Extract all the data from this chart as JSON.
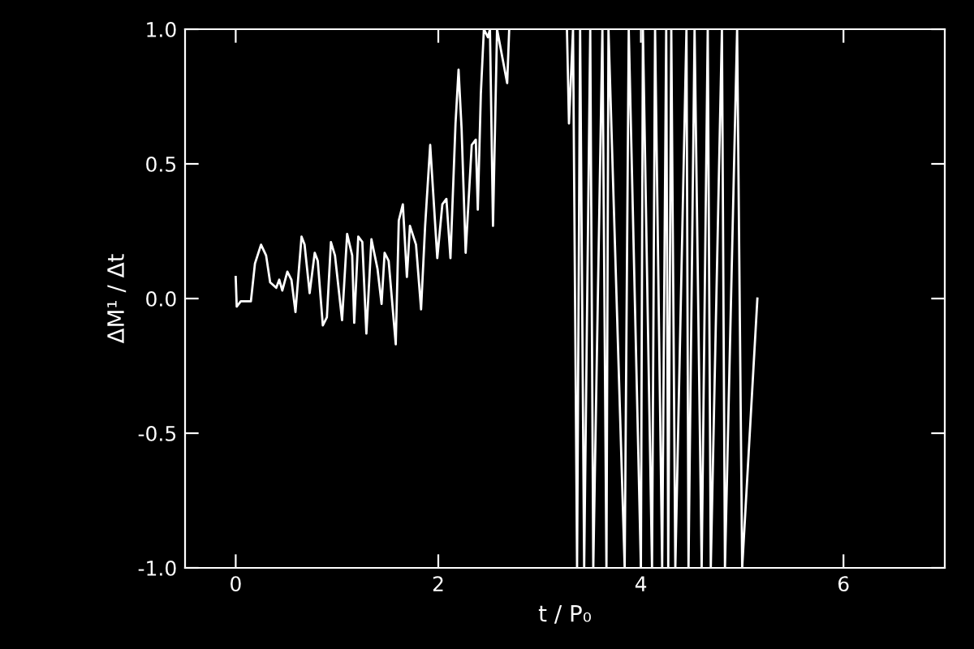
{
  "chart_data": {
    "type": "line",
    "xlabel": "t / P₀",
    "ylabel": "ΔM¹ / Δt",
    "xlim": [
      -0.5,
      7
    ],
    "ylim": [
      -1,
      1
    ],
    "xticks": [
      0,
      2,
      4,
      6
    ],
    "yticks": [
      {
        "value": -1,
        "label": "-1.0"
      },
      {
        "value": -0.5,
        "label": "-0.5"
      },
      {
        "value": 0,
        "label": "0.0"
      },
      {
        "value": 0.5,
        "label": "0.5"
      },
      {
        "value": 1,
        "label": "1.0"
      }
    ],
    "grid": false,
    "legend": false,
    "marker": "none",
    "line_style": "solid",
    "series": [
      {
        "color": "#ffffff",
        "x": [
          0,
          0.01,
          0.05,
          0.15,
          0.19,
          0.25,
          0.3,
          0.34,
          0.4,
          0.43,
          0.46,
          0.51,
          0.55,
          0.59,
          0.65,
          0.68,
          0.73,
          0.78,
          0.81,
          0.86,
          0.9,
          0.94,
          0.98,
          1.05,
          1.1,
          1.15,
          1.17,
          1.21,
          1.25,
          1.29,
          1.34,
          1.4,
          1.44,
          1.47,
          1.51,
          1.58,
          1.61,
          1.65,
          1.69,
          1.72,
          1.78,
          1.83,
          1.87,
          1.92,
          1.99,
          2.04,
          2.08,
          2.12,
          2.17,
          2.2,
          2.23,
          2.27,
          2.33,
          2.37,
          2.39,
          2.42,
          2.45,
          2.49,
          2.51,
          2.54,
          2.58,
          2.68,
          2.7,
          2.75,
          3.27,
          3.29,
          3.33,
          3.37,
          3.4,
          3.44,
          3.5,
          3.53,
          3.62,
          3.66,
          3.68,
          3.84,
          3.88,
          4.0,
          4.02,
          4.11,
          4.14,
          4.21,
          4.25,
          4.27,
          4.3,
          4.34,
          4.45,
          4.47,
          4.53,
          4.6,
          4.66,
          4.69,
          4.8,
          4.83,
          4.95,
          5.0,
          5.15
        ],
        "values": [
          0.08,
          -0.03,
          -0.01,
          -0.01,
          0.13,
          0.2,
          0.16,
          0.06,
          0.04,
          0.07,
          0.03,
          0.1,
          0.07,
          -0.05,
          0.23,
          0.2,
          0.02,
          0.17,
          0.14,
          -0.1,
          -0.07,
          0.21,
          0.16,
          -0.08,
          0.24,
          0.16,
          -0.09,
          0.23,
          0.21,
          -0.13,
          0.22,
          0.11,
          -0.02,
          0.17,
          0.14,
          -0.17,
          0.29,
          0.35,
          0.08,
          0.27,
          0.2,
          -0.04,
          0.27,
          0.57,
          0.15,
          0.35,
          0.37,
          0.15,
          0.65,
          0.85,
          0.63,
          0.17,
          0.57,
          0.59,
          0.33,
          0.76,
          1.0,
          0.97,
          1.0,
          0.27,
          1.0,
          0.8,
          1.0,
          null,
          1.0,
          0.65,
          1.0,
          -1.0,
          1.0,
          -1.0,
          1.0,
          -1.0,
          1.0,
          -1.0,
          1.0,
          -1.0,
          1.0,
          -1.0,
          1.0,
          -1.0,
          1.0,
          -1.0,
          1.0,
          -1.0,
          1.0,
          -1.0,
          1.0,
          -1.0,
          1.0,
          -1.0,
          1.0,
          -1.0,
          1.0,
          -1.0,
          1.0,
          -1.0,
          0.0
        ]
      }
    ]
  }
}
